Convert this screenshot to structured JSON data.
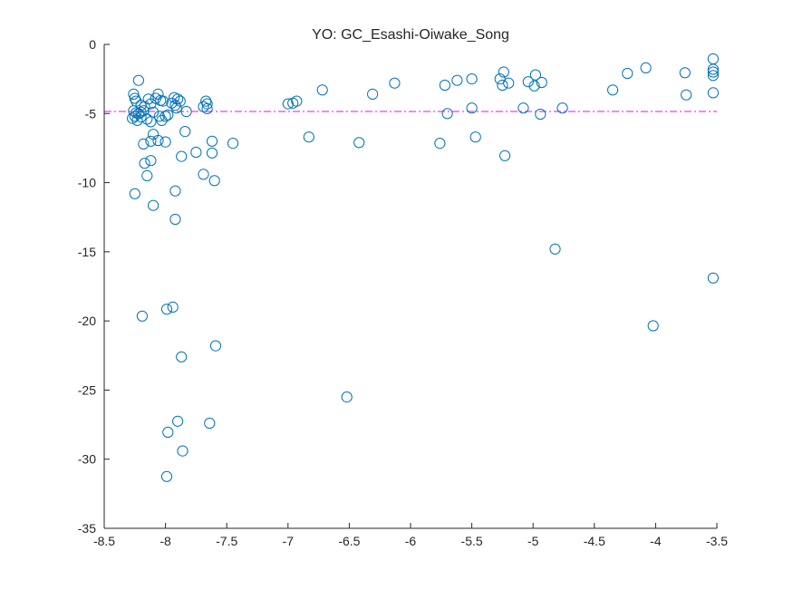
{
  "chart_data": {
    "type": "scatter",
    "title": "YO: GC_Esashi-Oiwake_Song",
    "xlabel": "",
    "ylabel": "",
    "xlim": [
      -8.5,
      -3.5
    ],
    "ylim": [
      -35,
      0
    ],
    "xticks": [
      -8.5,
      -8,
      -7.5,
      -7,
      -6.5,
      -6,
      -5.5,
      -5,
      -4.5,
      -4,
      -3.5
    ],
    "yticks": [
      0,
      -5,
      -10,
      -15,
      -20,
      -25,
      -30,
      -35
    ],
    "xtick_labels": [
      "-8.5",
      "-8",
      "-7.5",
      "-7",
      "-6.5",
      "-6",
      "-5.5",
      "-5",
      "-4.5",
      "-4",
      "-3.5"
    ],
    "ytick_labels": [
      "0",
      "-5",
      "-10",
      "-15",
      "-20",
      "-25",
      "-30",
      "-35"
    ],
    "grid": false,
    "marker": "open-circle",
    "marker_color": "#0072BD",
    "reference_line": {
      "y": -4.85,
      "style": "dash-dot",
      "color": "#FF00FF"
    },
    "series": [
      {
        "points": [
          [
            -8.26,
            -3.6
          ],
          [
            -8.25,
            -3.9
          ],
          [
            -8.24,
            -4.1
          ],
          [
            -8.22,
            -2.6
          ],
          [
            -8.2,
            -4.4
          ],
          [
            -8.18,
            -4.8
          ],
          [
            -8.26,
            -4.8
          ],
          [
            -8.24,
            -4.95
          ],
          [
            -8.22,
            -5.0
          ],
          [
            -8.2,
            -4.9
          ],
          [
            -8.25,
            -5.2
          ],
          [
            -8.27,
            -5.35
          ],
          [
            -8.23,
            -5.5
          ],
          [
            -8.2,
            -5.25
          ],
          [
            -8.17,
            -4.5
          ],
          [
            -8.14,
            -3.95
          ],
          [
            -8.12,
            -4.3
          ],
          [
            -8.15,
            -5.4
          ],
          [
            -8.12,
            -5.6
          ],
          [
            -8.1,
            -4.9
          ],
          [
            -8.08,
            -3.9
          ],
          [
            -8.06,
            -3.6
          ],
          [
            -8.04,
            -4.05
          ],
          [
            -8.02,
            -4.1
          ],
          [
            -8.05,
            -5.2
          ],
          [
            -8.03,
            -5.5
          ],
          [
            -8.0,
            -5.2
          ],
          [
            -7.98,
            -5.1
          ],
          [
            -7.95,
            -4.25
          ],
          [
            -7.93,
            -3.85
          ],
          [
            -7.92,
            -4.4
          ],
          [
            -7.9,
            -3.95
          ],
          [
            -7.91,
            -4.6
          ],
          [
            -7.88,
            -4.1
          ],
          [
            -7.83,
            -4.85
          ],
          [
            -7.69,
            -4.5
          ],
          [
            -7.67,
            -4.1
          ],
          [
            -7.66,
            -4.3
          ],
          [
            -7.66,
            -4.65
          ],
          [
            -8.1,
            -6.5
          ],
          [
            -8.12,
            -7.0
          ],
          [
            -8.18,
            -7.2
          ],
          [
            -8.06,
            -6.95
          ],
          [
            -8.0,
            -7.05
          ],
          [
            -7.84,
            -6.3
          ],
          [
            -8.12,
            -8.4
          ],
          [
            -8.17,
            -8.6
          ],
          [
            -7.87,
            -8.1
          ],
          [
            -7.75,
            -7.8
          ],
          [
            -7.62,
            -7.0
          ],
          [
            -7.62,
            -7.85
          ],
          [
            -7.45,
            -7.15
          ],
          [
            -8.15,
            -9.5
          ],
          [
            -7.69,
            -9.4
          ],
          [
            -7.6,
            -9.85
          ],
          [
            -8.25,
            -10.8
          ],
          [
            -7.92,
            -10.6
          ],
          [
            -8.1,
            -11.65
          ],
          [
            -7.92,
            -12.65
          ],
          [
            -8.19,
            -19.65
          ],
          [
            -7.99,
            -19.15
          ],
          [
            -7.94,
            -19.0
          ],
          [
            -7.59,
            -21.8
          ],
          [
            -7.87,
            -22.6
          ],
          [
            -7.9,
            -27.25
          ],
          [
            -7.98,
            -28.05
          ],
          [
            -7.64,
            -27.4
          ],
          [
            -7.86,
            -29.4
          ],
          [
            -7.99,
            -31.25
          ],
          [
            -7.0,
            -4.3
          ],
          [
            -6.96,
            -4.25
          ],
          [
            -6.93,
            -4.1
          ],
          [
            -6.72,
            -3.3
          ],
          [
            -6.83,
            -6.7
          ],
          [
            -6.42,
            -7.1
          ],
          [
            -6.31,
            -3.6
          ],
          [
            -6.13,
            -2.8
          ],
          [
            -6.52,
            -25.5
          ],
          [
            -5.72,
            -2.95
          ],
          [
            -5.7,
            -5.0
          ],
          [
            -5.62,
            -2.6
          ],
          [
            -5.5,
            -2.5
          ],
          [
            -5.5,
            -4.6
          ],
          [
            -5.76,
            -7.15
          ],
          [
            -5.47,
            -6.7
          ],
          [
            -5.27,
            -2.5
          ],
          [
            -5.24,
            -2.0
          ],
          [
            -5.25,
            -2.95
          ],
          [
            -5.2,
            -2.8
          ],
          [
            -5.23,
            -8.05
          ],
          [
            -5.04,
            -2.7
          ],
          [
            -4.98,
            -2.2
          ],
          [
            -4.99,
            -3.0
          ],
          [
            -4.93,
            -2.75
          ],
          [
            -5.08,
            -4.6
          ],
          [
            -4.94,
            -5.05
          ],
          [
            -4.76,
            -4.6
          ],
          [
            -4.82,
            -14.8
          ],
          [
            -4.35,
            -3.3
          ],
          [
            -4.23,
            -2.1
          ],
          [
            -4.08,
            -1.7
          ],
          [
            -4.02,
            -20.35
          ],
          [
            -3.76,
            -2.05
          ],
          [
            -3.75,
            -3.65
          ],
          [
            -3.53,
            -1.05
          ],
          [
            -3.53,
            -1.8
          ],
          [
            -3.53,
            -2.0
          ],
          [
            -3.53,
            -2.25
          ],
          [
            -3.53,
            -3.5
          ],
          [
            -3.53,
            -16.9
          ]
        ]
      }
    ]
  }
}
